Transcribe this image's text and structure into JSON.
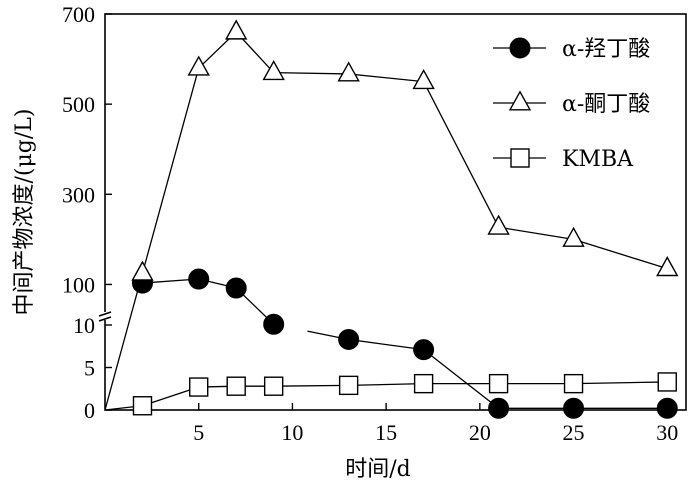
{
  "chart_data": {
    "type": "line",
    "xlabel": "时间/d",
    "ylabel": "中间产物浓度/(μg/L)",
    "x_ticks": [
      5,
      10,
      15,
      20,
      25,
      30
    ],
    "xlim": [
      0,
      31
    ],
    "y_ticks_lower": [
      "0",
      "5",
      "10"
    ],
    "y_ticks_upper": [
      "100",
      "300",
      "500",
      "700"
    ],
    "y_scale": "broken axis: lower segment 0–10 μg/L, upper segment 10–700 μg/L",
    "y_break_at": 10,
    "grid": false,
    "legend_position": "top-right",
    "series": [
      {
        "name": "α-羟丁酸",
        "marker": "filled-circle",
        "x": [
          2,
          5,
          7,
          9,
          13,
          17,
          21,
          25,
          30
        ],
        "y": [
          103,
          112,
          92,
          11.6,
          8.3,
          7.1,
          0.2,
          0.2,
          0.2
        ],
        "gap_after_index": 3
      },
      {
        "name": "α-酮丁酸",
        "marker": "open-triangle",
        "x": [
          0,
          2,
          5,
          7,
          9,
          13,
          17,
          21,
          25,
          30
        ],
        "y": [
          0,
          125,
          580,
          660,
          570,
          567,
          550,
          227,
          200,
          135
        ]
      },
      {
        "name": "KMBA",
        "marker": "open-square",
        "x": [
          0,
          2,
          5,
          7,
          9,
          13,
          17,
          21,
          25,
          30
        ],
        "y": [
          0,
          0.5,
          2.7,
          2.8,
          2.8,
          2.9,
          3.1,
          3.1,
          3.1,
          3.3
        ]
      }
    ]
  }
}
